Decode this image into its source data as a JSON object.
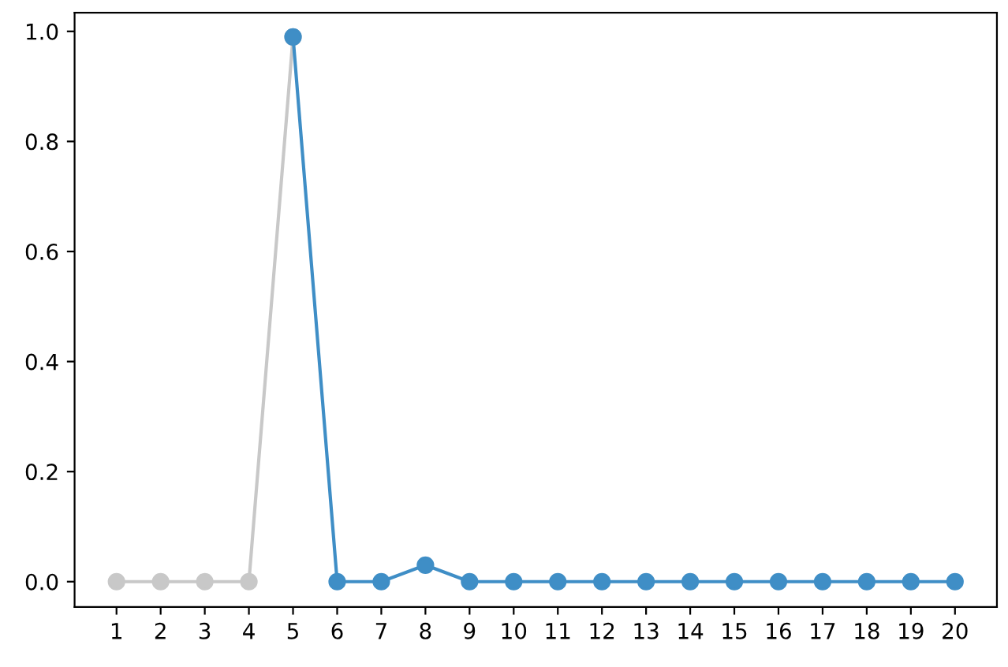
{
  "chart_data": {
    "type": "line",
    "marker": "circle",
    "line_style": "solid",
    "grid": false,
    "legend": false,
    "series": [
      {
        "color": "#c8c8c8",
        "x": [
          1,
          2,
          3,
          4,
          5
        ],
        "values": [
          0,
          0,
          0,
          0,
          0.99
        ]
      },
      {
        "color": "#3f8ec6",
        "x": [
          5,
          6,
          7,
          8,
          9,
          10,
          11,
          12,
          13,
          14,
          15,
          16,
          17,
          18,
          19,
          20
        ],
        "values": [
          0.99,
          0,
          0,
          0.03,
          0,
          0,
          0,
          0,
          0,
          0,
          0,
          0,
          0,
          0,
          0,
          0
        ]
      }
    ],
    "xlim": [
      0.05,
      20.95
    ],
    "xticks": [
      1,
      2,
      3,
      4,
      5,
      6,
      7,
      8,
      9,
      10,
      11,
      12,
      13,
      14,
      15,
      16,
      17,
      18,
      19,
      20
    ],
    "ylim": [
      -0.046,
      1.034
    ],
    "yticks": [
      {
        "value": 0,
        "label": "0.0"
      },
      {
        "value": 0.2,
        "label": "0.2"
      },
      {
        "value": 0.4,
        "label": "0.4"
      },
      {
        "value": 0.6,
        "label": "0.6"
      },
      {
        "value": 0.8,
        "label": "0.8"
      },
      {
        "value": 1.0,
        "label": "1.0"
      }
    ]
  }
}
